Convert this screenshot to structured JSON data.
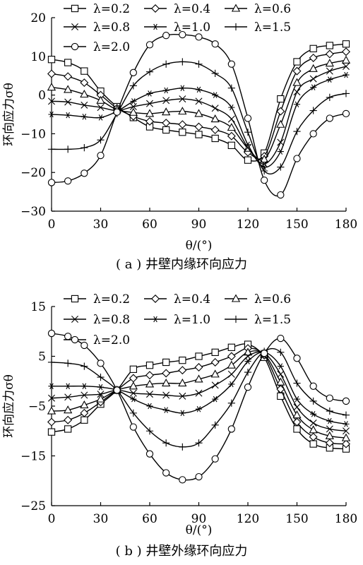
{
  "chart_data": [
    {
      "type": "line",
      "caption": "( a ) 井壁内缘环向应力",
      "ylabel": "环向应力σθ",
      "xlabel": "θ/(°)",
      "xlim": [
        0,
        180
      ],
      "ylim": [
        -30,
        20
      ],
      "xticks": [
        0,
        30,
        60,
        90,
        120,
        150,
        180
      ],
      "yticks": [
        20,
        10,
        0,
        -10,
        -20,
        -30
      ],
      "x": [
        0,
        10,
        20,
        30,
        40,
        50,
        60,
        70,
        80,
        90,
        100,
        110,
        120,
        130,
        140,
        150,
        160,
        170,
        180
      ],
      "series": [
        {
          "name": "λ=0.2",
          "marker": "square",
          "values": [
            9.2,
            8.4,
            6.2,
            1.0,
            -3.0,
            -5.8,
            -8.2,
            -9.0,
            -9.6,
            -10.2,
            -11.2,
            -13.0,
            -16.8,
            -15.0,
            -1.0,
            8.6,
            12.0,
            12.8,
            13.2
          ]
        },
        {
          "name": "λ=0.4",
          "marker": "diamond",
          "values": [
            5.5,
            4.8,
            3.2,
            0.0,
            -3.4,
            -5.5,
            -6.8,
            -7.2,
            -7.6,
            -8.2,
            -9.0,
            -10.6,
            -14.8,
            -15.8,
            -4.2,
            6.2,
            9.6,
            10.6,
            11.2
          ]
        },
        {
          "name": "λ=0.6",
          "marker": "triangle",
          "values": [
            2.0,
            1.4,
            0.2,
            -1.4,
            -3.8,
            -4.5,
            -4.8,
            -4.4,
            -4.2,
            -4.8,
            -6.2,
            -8.4,
            -13.8,
            -16.6,
            -7.6,
            3.2,
            6.8,
            8.2,
            9.0
          ]
        },
        {
          "name": "λ=0.8",
          "marker": "x",
          "values": [
            -1.6,
            -1.8,
            -2.6,
            -3.2,
            -4.0,
            -3.0,
            -2.2,
            -1.4,
            -1.0,
            -1.6,
            -3.4,
            -6.2,
            -13.6,
            -17.8,
            -12.2,
            0.8,
            4.2,
            6.2,
            7.4
          ]
        },
        {
          "name": "λ=1.0",
          "marker": "asterisk",
          "values": [
            -5.0,
            -5.2,
            -5.6,
            -5.8,
            -4.2,
            -1.6,
            0.4,
            1.2,
            1.8,
            1.4,
            0.0,
            -3.2,
            -12.8,
            -18.6,
            -14.6,
            -2.4,
            2.0,
            4.0,
            5.2
          ]
        },
        {
          "name": "λ=1.5",
          "marker": "plus",
          "values": [
            -14.0,
            -14.0,
            -13.6,
            -11.6,
            -4.8,
            2.4,
            6.0,
            8.0,
            8.6,
            8.0,
            5.6,
            1.8,
            -9.6,
            -19.6,
            -18.6,
            -9.4,
            -4.0,
            -0.6,
            0.4
          ]
        },
        {
          "name": "λ=2.0",
          "marker": "circle",
          "values": [
            -22.6,
            -22.2,
            -20.2,
            -15.6,
            -4.4,
            5.8,
            13.0,
            15.4,
            15.6,
            15.0,
            13.2,
            8.0,
            -6.0,
            -22.0,
            -25.8,
            -16.4,
            -10.0,
            -6.0,
            -4.8
          ]
        }
      ]
    },
    {
      "type": "line",
      "caption": "( b ) 井壁外缘环向应力",
      "ylabel": "环向应力σθ",
      "xlabel": "θ/(°)",
      "xlim": [
        0,
        180
      ],
      "ylim": [
        -25,
        15
      ],
      "xticks": [
        0,
        30,
        60,
        90,
        120,
        150,
        180
      ],
      "yticks": [
        15,
        5,
        -5,
        -15,
        -25
      ],
      "x": [
        0,
        10,
        20,
        30,
        40,
        50,
        60,
        70,
        80,
        90,
        100,
        110,
        120,
        130,
        140,
        150,
        160,
        170,
        180
      ],
      "series": [
        {
          "name": "λ=0.2",
          "marker": "square",
          "values": [
            -10.2,
            -9.6,
            -7.8,
            -4.6,
            -1.8,
            2.4,
            3.2,
            3.8,
            4.2,
            5.0,
            5.8,
            6.8,
            7.4,
            4.8,
            -3.0,
            -9.6,
            -12.6,
            -13.4,
            -13.6
          ]
        },
        {
          "name": "λ=0.4",
          "marker": "diamond",
          "values": [
            -8.2,
            -7.8,
            -6.4,
            -4.2,
            -1.8,
            0.6,
            1.2,
            1.6,
            2.2,
            2.8,
            3.8,
            5.0,
            6.6,
            5.2,
            -1.6,
            -8.2,
            -11.2,
            -12.4,
            -12.6
          ]
        },
        {
          "name": "λ=0.6",
          "marker": "triangle",
          "values": [
            -6.0,
            -5.8,
            -4.8,
            -3.6,
            -1.8,
            -1.0,
            -0.6,
            -0.4,
            -0.4,
            0.4,
            1.4,
            3.2,
            5.8,
            5.4,
            -0.2,
            -6.8,
            -9.8,
            -11.0,
            -11.4
          ]
        },
        {
          "name": "λ=0.8",
          "marker": "x",
          "values": [
            -3.4,
            -3.2,
            -2.8,
            -2.6,
            -1.8,
            -2.4,
            -2.6,
            -2.8,
            -3.0,
            -2.4,
            -0.8,
            1.4,
            5.0,
            5.6,
            1.4,
            -5.2,
            -8.4,
            -9.6,
            -10.0
          ]
        },
        {
          "name": "λ=1.0",
          "marker": "asterisk",
          "values": [
            -1.0,
            -1.0,
            -1.0,
            -1.2,
            -1.8,
            -3.6,
            -5.0,
            -5.8,
            -6.4,
            -5.6,
            -3.6,
            -0.6,
            4.0,
            5.8,
            3.0,
            -3.6,
            -6.6,
            -8.0,
            -8.6
          ]
        },
        {
          "name": "λ=1.5",
          "marker": "plus",
          "values": [
            3.8,
            3.6,
            3.0,
            0.8,
            -1.8,
            -6.4,
            -10.0,
            -12.4,
            -13.2,
            -12.4,
            -8.8,
            -4.4,
            1.8,
            6.0,
            5.8,
            -0.4,
            -4.0,
            -6.0,
            -6.8
          ]
        },
        {
          "name": "λ=2.0",
          "marker": "circle",
          "values": [
            9.6,
            9.0,
            7.2,
            3.6,
            -1.8,
            -9.2,
            -14.6,
            -18.4,
            -19.8,
            -19.2,
            -15.6,
            -9.6,
            -1.2,
            5.6,
            8.6,
            4.6,
            -1.0,
            -3.4,
            -4.0
          ]
        }
      ]
    }
  ]
}
